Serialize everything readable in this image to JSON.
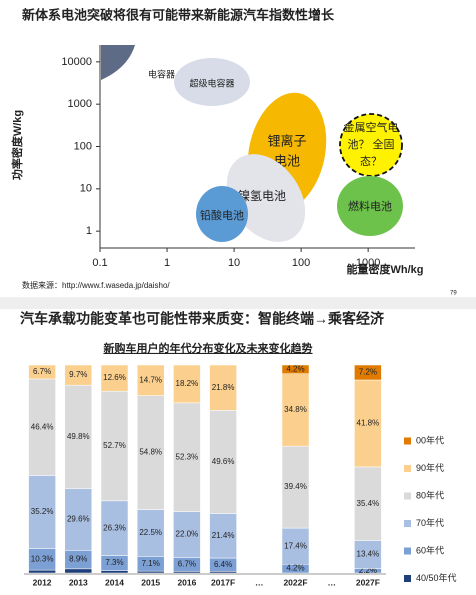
{
  "chart_data": [
    {
      "type": "regions",
      "title": "新体系电池突破将很有可能带来新能源汽车指数性增长",
      "x_label": "能量密度Wh/kg",
      "y_label": "功率密度W/kg",
      "log_x": true,
      "log_y": true,
      "xlim": [
        0.1,
        5000
      ],
      "xticks": [
        0.1,
        1,
        10,
        100,
        1000
      ],
      "ylim": [
        0.4,
        25000
      ],
      "yticks": [
        1,
        10,
        100,
        1000,
        10000
      ],
      "regions": [
        {
          "label_lines": [
            "电容器"
          ],
          "color": "#5d6b86"
        },
        {
          "label_lines": [
            "超级电容器"
          ],
          "color": "#d7dce8"
        },
        {
          "label_lines": [
            "锂离子",
            "电池"
          ],
          "color": "#f6b800"
        },
        {
          "label_lines": [
            "金属空气电",
            "池？ 全固",
            "态？"
          ],
          "color": "#fff200"
        },
        {
          "label_lines": [
            "燃料电池"
          ],
          "color": "#6cc24a"
        },
        {
          "label_lines": [
            "镍氢电池"
          ],
          "color": "#e3e3ea"
        },
        {
          "label_lines": [
            "铅酸电池"
          ],
          "color": "#5b9bd5"
        }
      ],
      "source": "数据来源：http://www.f.waseda.jp/daisho/",
      "page_number": "79"
    },
    {
      "type": "stacked_bar",
      "title": "汽车承载功能变革也可能性带来质变：智能终端→乘客经济",
      "subtitle": "新购车用户的年代分布变化及未来变化趋势",
      "categories": [
        "2012",
        "2013",
        "2014",
        "2015",
        "2016",
        "2017F",
        "…",
        "2022F",
        "…",
        "2027F"
      ],
      "ylim": [
        0,
        100
      ],
      "series": [
        {
          "name": "00年代",
          "color": "#e07b00",
          "values": [
            0,
            0,
            0,
            0,
            0,
            0,
            null,
            4.2,
            null,
            7.2
          ],
          "value_labels": [
            null,
            null,
            null,
            null,
            null,
            null,
            null,
            "4.2%",
            null,
            "7.2%"
          ]
        },
        {
          "name": "90年代",
          "color": "#fbd08e",
          "values": [
            6.7,
            9.7,
            12.6,
            14.7,
            18.2,
            21.8,
            null,
            34.8,
            null,
            41.8
          ],
          "value_labels": [
            "6.7%",
            "9.7%",
            "12.6%",
            "14.7%",
            "18.2%",
            "21.8%",
            null,
            "34.8%",
            null,
            "41.8%"
          ]
        },
        {
          "name": "80年代",
          "color": "#dadada",
          "values": [
            46.4,
            49.8,
            52.7,
            54.8,
            52.3,
            49.6,
            null,
            39.4,
            null,
            35.4
          ],
          "value_labels": [
            "46.4%",
            "49.8%",
            "52.7%",
            "54.8%",
            "52.3%",
            "49.6%",
            null,
            "39.4%",
            null,
            "35.4%"
          ]
        },
        {
          "name": "70年代",
          "color": "#a9bfe2",
          "values": [
            35.2,
            29.6,
            26.3,
            22.5,
            22.0,
            21.4,
            null,
            17.4,
            null,
            13.4
          ],
          "value_labels": [
            "35.2%",
            "29.6%",
            "26.3%",
            "22.5%",
            "22.0%",
            "21.4%",
            null,
            "17.4%",
            null,
            "13.4%"
          ]
        },
        {
          "name": "60年代",
          "color": "#7c9fd4",
          "values": [
            10.3,
            8.9,
            7.3,
            7.1,
            6.7,
            6.4,
            null,
            4.2,
            null,
            2.2
          ],
          "value_labels": [
            "10.3%",
            "8.9%",
            "7.3%",
            "7.1%",
            "6.7%",
            "6.4%",
            null,
            "4.2%",
            null,
            "2.2%"
          ]
        },
        {
          "name": "40/50年代",
          "color": "#1f3f7a",
          "values": [
            1.4,
            2.0,
            1.1,
            0.9,
            0.8,
            0.8,
            null,
            0,
            null,
            0
          ],
          "value_labels": [
            null,
            null,
            null,
            null,
            null,
            null,
            null,
            null,
            null,
            null
          ]
        }
      ]
    }
  ]
}
